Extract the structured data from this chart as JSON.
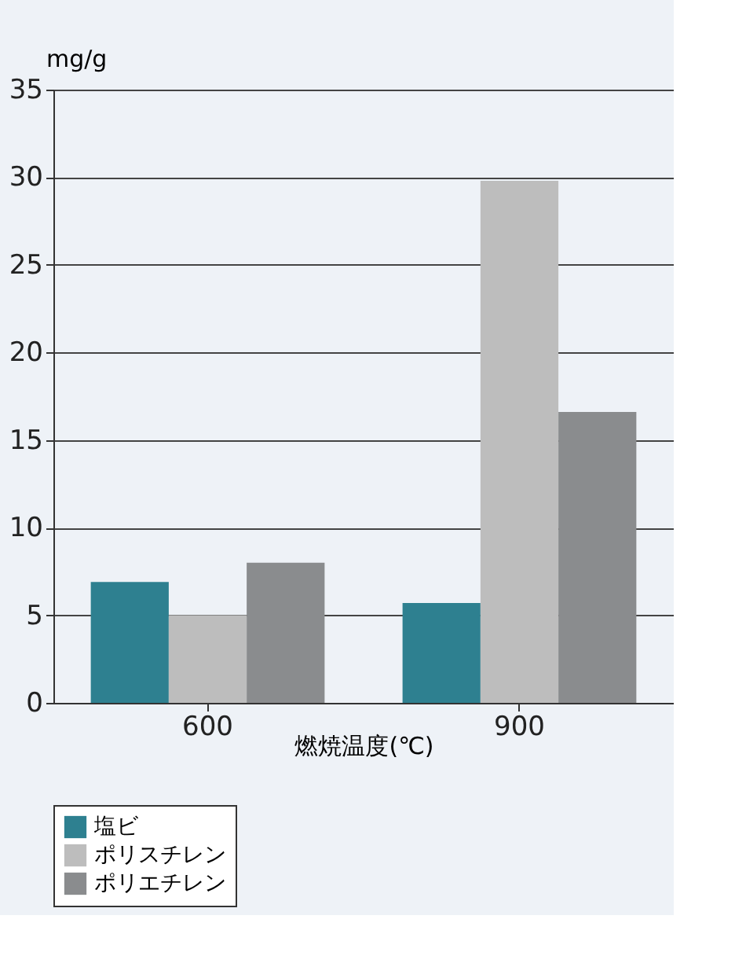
{
  "chart_data": {
    "type": "bar",
    "xlabel": "燃焼温度(℃)",
    "ylabel": "mg/g",
    "categories": [
      "600",
      "900"
    ],
    "series": [
      {
        "name": "塩ビ",
        "color": "#2e8090",
        "values": [
          6.9,
          5.7
        ]
      },
      {
        "name": "ポリスチレン",
        "color": "#bdbdbd",
        "values": [
          5.0,
          29.8
        ]
      },
      {
        "name": "ポリエチレン",
        "color": "#8a8c8e",
        "values": [
          8.0,
          16.6
        ]
      }
    ],
    "ylim": [
      0,
      35
    ],
    "yticks": [
      0,
      5,
      10,
      15,
      20,
      25,
      30,
      35
    ],
    "grid": "y",
    "legend": "bottom left"
  }
}
